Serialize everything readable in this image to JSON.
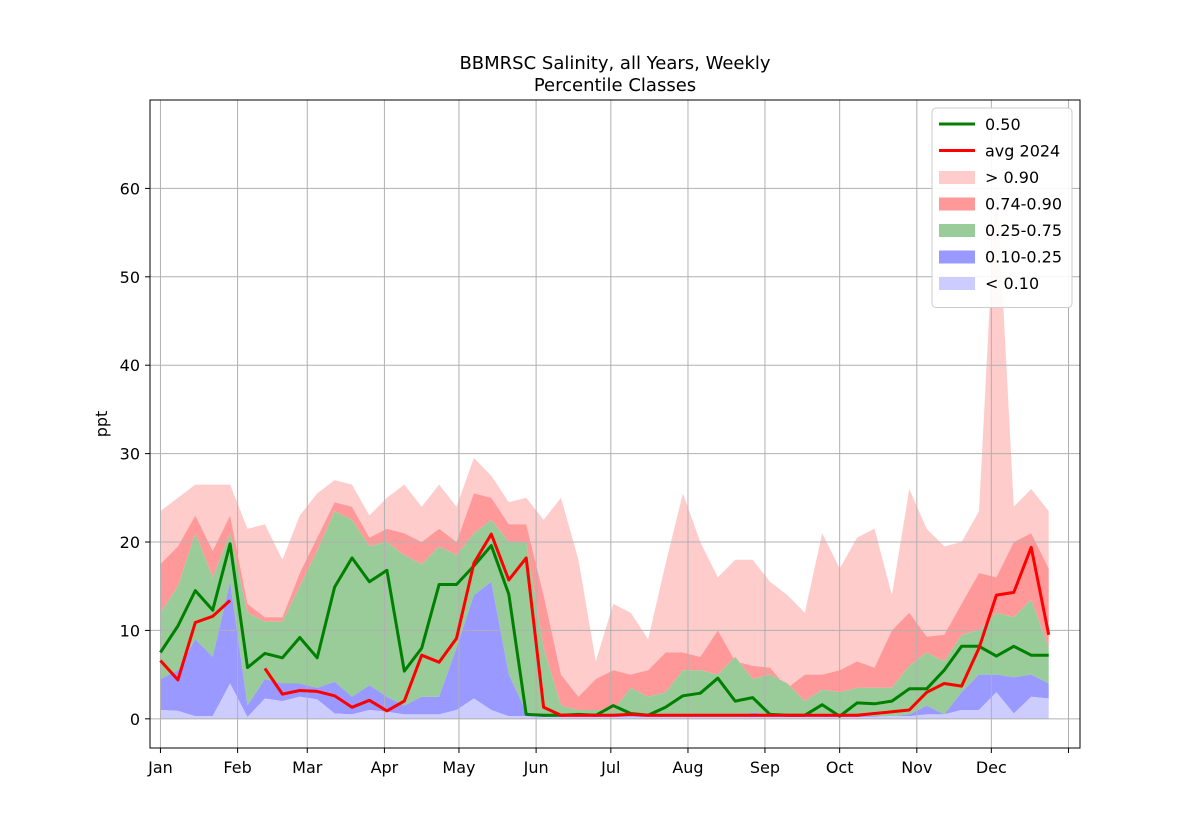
{
  "chart_data": {
    "type": "area",
    "title": "BBMRSC Salinity, all Years, Weekly",
    "subtitle": "Percentile Classes",
    "xlabel": "",
    "ylabel": "ppt",
    "xlim": [
      -0.6,
      52.8
    ],
    "ylim": [
      -3.3,
      70
    ],
    "grid": true,
    "legend_position": "top-right",
    "x_ticks": [
      {
        "pos": 0,
        "label": "Jan"
      },
      {
        "pos": 4.43,
        "label": "Feb"
      },
      {
        "pos": 8.43,
        "label": "Mar"
      },
      {
        "pos": 12.86,
        "label": "Apr"
      },
      {
        "pos": 17.14,
        "label": "May"
      },
      {
        "pos": 21.57,
        "label": "Jun"
      },
      {
        "pos": 25.86,
        "label": "Jul"
      },
      {
        "pos": 30.29,
        "label": "Aug"
      },
      {
        "pos": 34.71,
        "label": "Sep"
      },
      {
        "pos": 39.0,
        "label": "Oct"
      },
      {
        "pos": 43.43,
        "label": "Nov"
      },
      {
        "pos": 47.71,
        "label": "Dec"
      },
      {
        "pos": 52.14,
        "label": ""
      }
    ],
    "y_ticks": [
      0,
      10,
      20,
      30,
      40,
      50,
      60
    ],
    "weeks": [
      0,
      1,
      2,
      3,
      4,
      5,
      6,
      7,
      8,
      9,
      10,
      11,
      12,
      13,
      14,
      15,
      16,
      17,
      18,
      19,
      20,
      21,
      22,
      23,
      24,
      25,
      26,
      27,
      28,
      29,
      30,
      31,
      32,
      33,
      34,
      35,
      36,
      37,
      38,
      39,
      40,
      41,
      42,
      43,
      44,
      45,
      46,
      47,
      48,
      49,
      50,
      51
    ],
    "percentiles": {
      "p10": [
        1.0,
        0.9,
        0.3,
        0.3,
        4.0,
        0.2,
        2.3,
        2.0,
        2.5,
        2.2,
        0.6,
        0.5,
        1.0,
        0.8,
        0.5,
        0.5,
        0.5,
        1.0,
        2.3,
        1.0,
        0.3,
        0.3,
        0.2,
        0.2,
        0.2,
        0.2,
        0.2,
        0.2,
        0.2,
        0.2,
        0.2,
        0.2,
        0.2,
        0.2,
        0.2,
        0.2,
        0.2,
        0.2,
        0.2,
        0.2,
        0.2,
        0.2,
        0.3,
        0.3,
        0.5,
        0.5,
        1.0,
        1.0,
        3.0,
        0.6,
        2.5,
        2.3
      ],
      "p25": [
        4.5,
        5.5,
        9.0,
        7.0,
        15.5,
        1.5,
        4.5,
        4.0,
        4.0,
        3.5,
        4.2,
        2.5,
        3.8,
        2.5,
        1.5,
        2.5,
        2.5,
        8.0,
        14.0,
        15.5,
        5.0,
        0.8,
        0.3,
        0.3,
        0.3,
        0.3,
        0.3,
        0.3,
        0.3,
        0.3,
        0.3,
        0.3,
        0.3,
        0.3,
        0.7,
        0.5,
        0.5,
        0.3,
        0.3,
        0.3,
        0.3,
        0.3,
        0.3,
        0.5,
        1.5,
        0.5,
        3.0,
        5.0,
        5.0,
        4.7,
        5.0,
        4.0
      ],
      "p75": [
        12.0,
        15.0,
        21.0,
        16.0,
        21.0,
        12.0,
        11.0,
        11.0,
        15.0,
        19.0,
        23.5,
        22.5,
        19.5,
        20.0,
        18.5,
        17.5,
        19.5,
        18.5,
        21.0,
        22.5,
        20.0,
        20.0,
        8.0,
        1.5,
        1.0,
        1.0,
        1.0,
        3.5,
        2.5,
        3.0,
        5.5,
        5.5,
        5.0,
        7.0,
        4.5,
        5.0,
        4.0,
        2.0,
        3.3,
        3.0,
        3.5,
        3.5,
        3.5,
        6.0,
        7.5,
        6.5,
        9.5,
        10.0,
        12.0,
        11.5,
        13.5,
        8.0
      ],
      "p90": [
        17.5,
        19.5,
        23.0,
        19.0,
        23.0,
        13.0,
        11.5,
        11.5,
        16.5,
        20.5,
        24.5,
        24.0,
        20.5,
        21.5,
        21.0,
        20.0,
        21.5,
        20.0,
        25.5,
        25.0,
        22.0,
        22.0,
        14.0,
        5.0,
        2.5,
        4.5,
        5.5,
        5.0,
        5.5,
        7.5,
        7.5,
        7.0,
        10.0,
        6.5,
        6.0,
        5.8,
        3.5,
        5.0,
        5.0,
        5.5,
        6.5,
        5.8,
        10.0,
        12.0,
        9.3,
        9.5,
        13.0,
        16.5,
        16.0,
        20.0,
        21.0,
        17.0
      ],
      "max": [
        23.5,
        25.0,
        26.5,
        26.5,
        26.5,
        21.5,
        22.0,
        18.0,
        23.0,
        25.5,
        27.0,
        26.5,
        23.0,
        25.0,
        26.5,
        24.0,
        26.5,
        24.0,
        29.5,
        27.5,
        24.5,
        25.0,
        22.5,
        25.0,
        18.0,
        6.5,
        13.0,
        12.0,
        9.0,
        17.5,
        25.5,
        20.0,
        16.0,
        18.0,
        18.0,
        15.5,
        14.0,
        12.0,
        21.0,
        17.0,
        20.5,
        21.5,
        14.0,
        26.0,
        21.5,
        19.5,
        20.0,
        23.5,
        61.5,
        24.0,
        26.0,
        23.5
      ]
    },
    "series": [
      {
        "name": "0.50",
        "color": "#008000",
        "values": [
          7.5,
          10.5,
          14.5,
          12.3,
          19.8,
          5.8,
          7.4,
          6.9,
          9.2,
          6.9,
          14.9,
          18.2,
          15.5,
          16.8,
          5.4,
          8.0,
          15.2,
          15.2,
          17.3,
          19.6,
          14.1,
          0.5,
          0.4,
          0.4,
          0.5,
          0.4,
          1.5,
          0.6,
          0.4,
          1.3,
          2.6,
          2.9,
          4.6,
          2.0,
          2.4,
          0.5,
          0.4,
          0.4,
          1.6,
          0.3,
          1.8,
          1.7,
          2.0,
          3.4,
          3.4,
          5.5,
          8.2,
          8.2,
          7.1,
          8.2,
          7.2,
          7.2
        ]
      },
      {
        "name": "avg 2024",
        "color": "#ff0000",
        "values": [
          6.6,
          4.4,
          10.9,
          11.6,
          13.4,
          null,
          5.7,
          2.8,
          3.2,
          3.1,
          2.6,
          1.3,
          2.1,
          0.9,
          2.0,
          7.2,
          6.4,
          9.1,
          17.6,
          20.9,
          15.7,
          18.2,
          1.3,
          0.4,
          0.4,
          0.4,
          0.4,
          0.5,
          0.4,
          0.4,
          0.4,
          0.4,
          0.4,
          0.4,
          0.4,
          0.4,
          0.4,
          0.4,
          0.4,
          0.4,
          0.4,
          0.6,
          0.8,
          1.0,
          3.0,
          4.0,
          3.7,
          8.0,
          14.0,
          14.3,
          19.4,
          9.5
        ]
      }
    ],
    "bands": [
      {
        "name": "> 0.90",
        "color": "#ffcccc",
        "from": "p90",
        "to": "max"
      },
      {
        "name": "0.74-0.90",
        "color": "#ff9999",
        "from": "p75",
        "to": "p90"
      },
      {
        "name": "0.25-0.75",
        "color": "#99cc99",
        "from": "p25",
        "to": "p75"
      },
      {
        "name": "0.10-0.25",
        "color": "#9999ff",
        "from": "p10",
        "to": "p25"
      },
      {
        "name": "< 0.10",
        "color": "#ccccff",
        "from": "zero",
        "to": "p10"
      }
    ],
    "legend": [
      {
        "name": "0.50",
        "kind": "line",
        "color": "#008000"
      },
      {
        "name": "avg 2024",
        "kind": "line",
        "color": "#ff0000"
      },
      {
        "name": "> 0.90",
        "kind": "patch",
        "color": "#ffcccc"
      },
      {
        "name": "0.74-0.90",
        "kind": "patch",
        "color": "#ff9999"
      },
      {
        "name": "0.25-0.75",
        "kind": "patch",
        "color": "#99cc99"
      },
      {
        "name": "0.10-0.25",
        "kind": "patch",
        "color": "#9999ff"
      },
      {
        "name": "< 0.10",
        "kind": "patch",
        "color": "#ccccff"
      }
    ]
  }
}
